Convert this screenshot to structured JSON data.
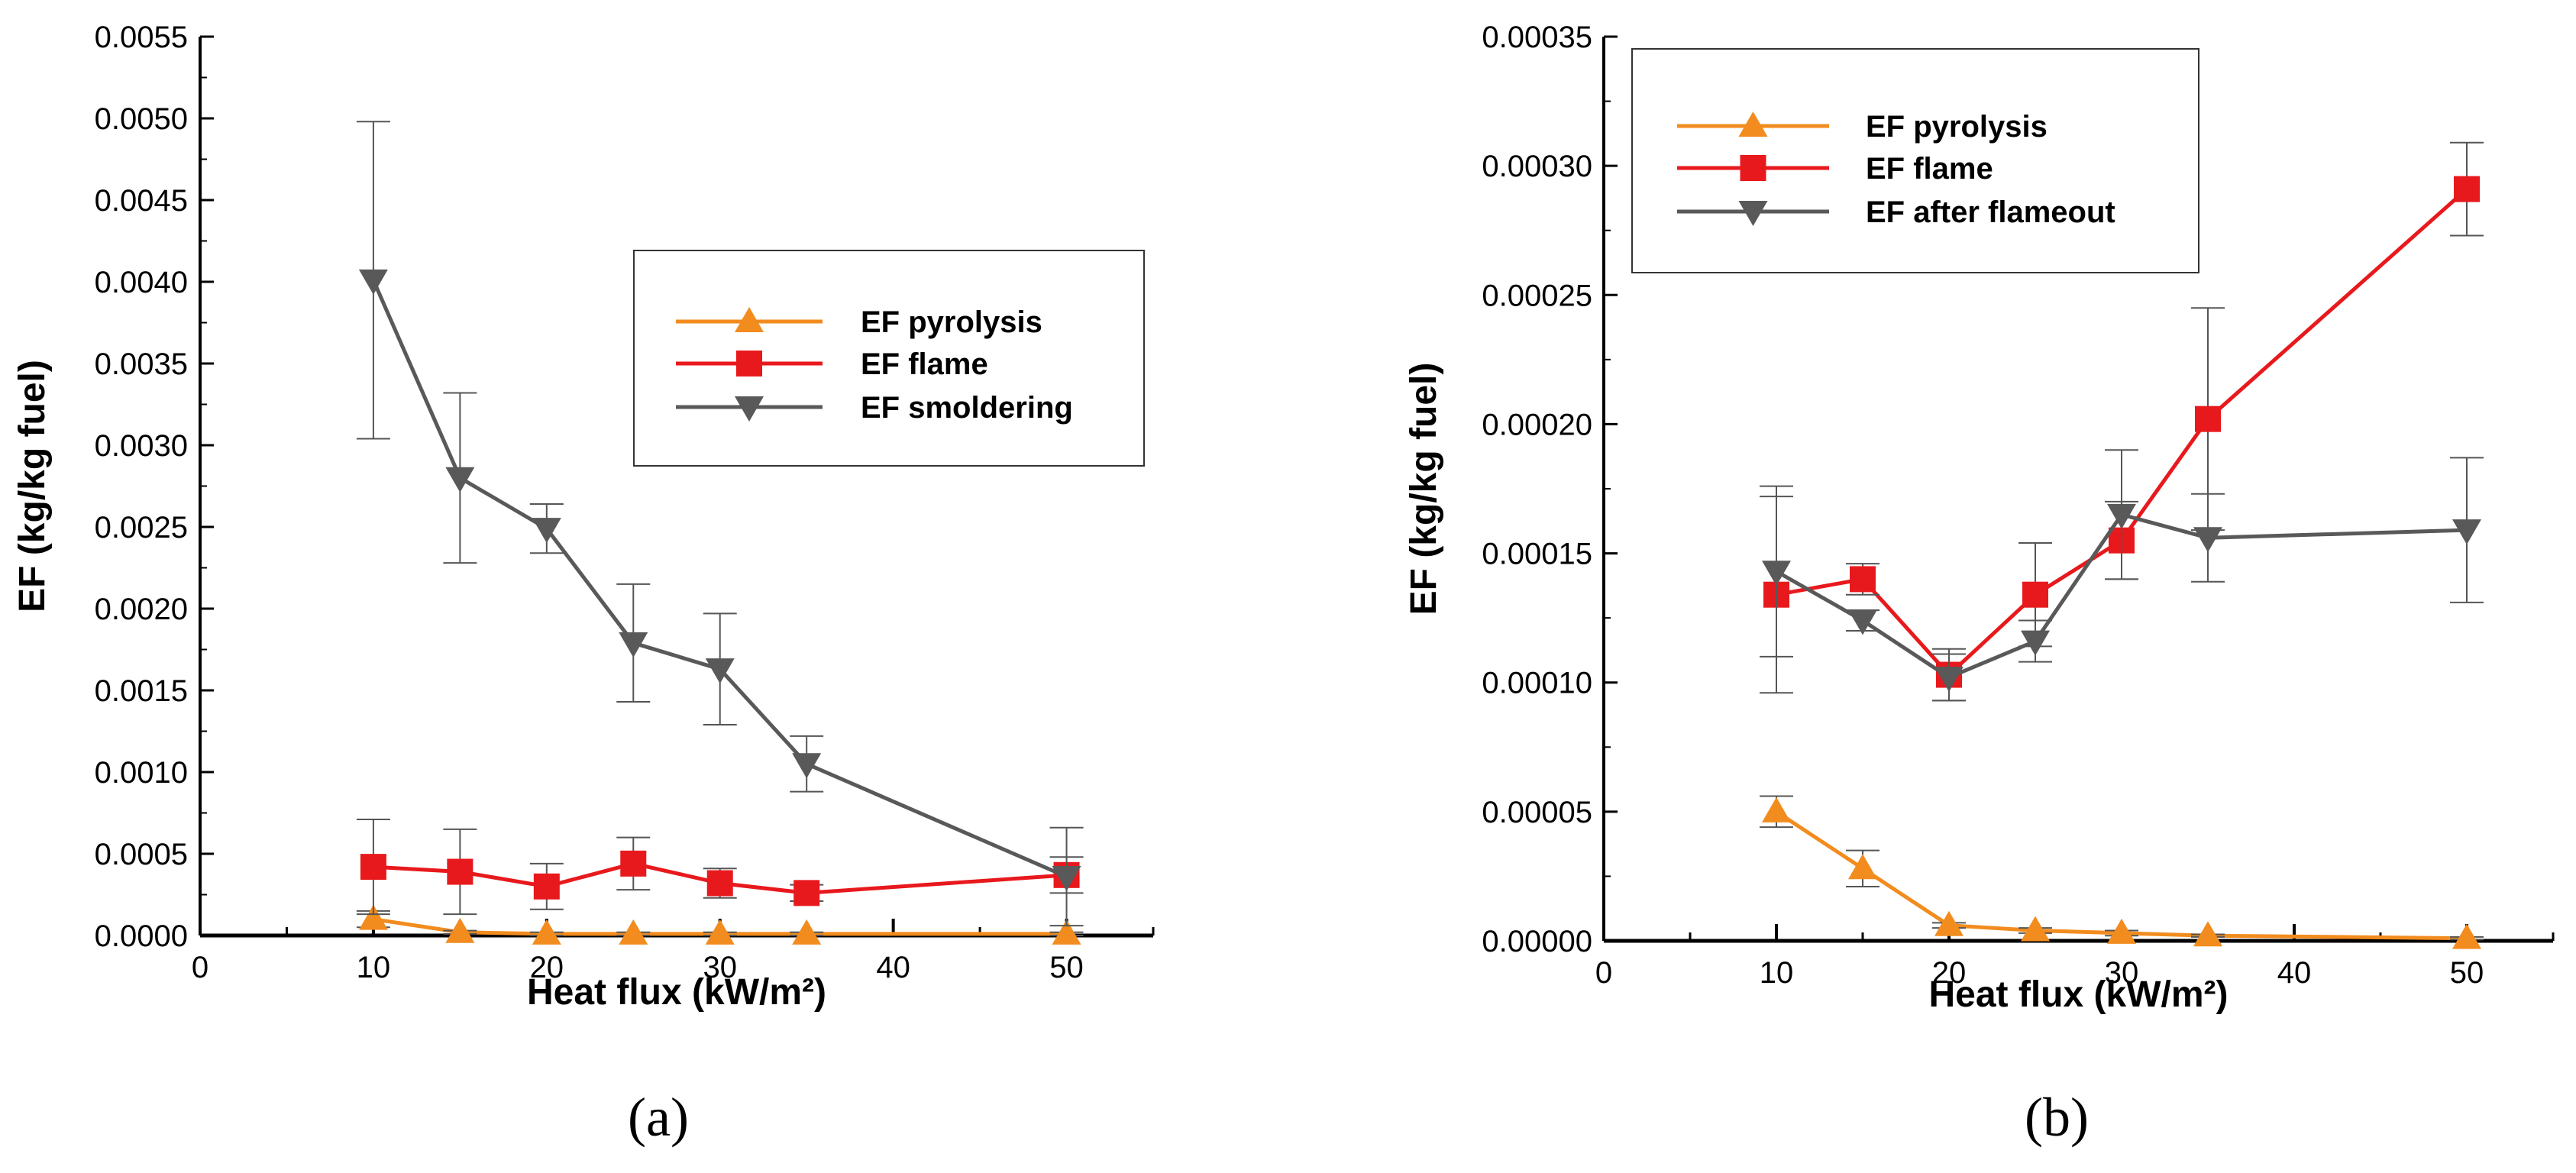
{
  "colors": {
    "pyrolysis": "#f28c1e",
    "flame": "#e8191d",
    "gray": "#595959",
    "axis": "#000000"
  },
  "chart_data": [
    {
      "type": "line",
      "panel_label": "(a)",
      "xlabel": "Heat flux (kW/m²)",
      "ylabel": "EF (kg/kg fuel)",
      "xlim": [
        0,
        55
      ],
      "ylim": [
        0,
        0.0055
      ],
      "x_ticks": [
        0,
        10,
        20,
        30,
        40,
        50
      ],
      "x_tick_labels": [
        "0",
        "10",
        "20",
        "30",
        "40",
        "50"
      ],
      "y_ticks": [
        0,
        0.0005,
        0.001,
        0.0015,
        0.002,
        0.0025,
        0.003,
        0.0035,
        0.004,
        0.0045,
        0.005,
        0.0055
      ],
      "y_tick_labels": [
        "0.0000",
        "0.0005",
        "0.0010",
        "0.0015",
        "0.0020",
        "0.0025",
        "0.0030",
        "0.0035",
        "0.0040",
        "0.0045",
        "0.0050",
        "0.0055"
      ],
      "legend_position": "upper-right",
      "series": [
        {
          "name": "EF pyrolysis",
          "color_key": "pyrolysis",
          "marker": "triangle-up",
          "x": [
            10,
            15,
            20,
            25,
            30,
            35,
            50
          ],
          "y": [
            0.0001,
            2e-05,
            1e-05,
            1e-05,
            1e-05,
            1e-05,
            1e-05
          ],
          "err": [
            5e-05,
            1e-05,
            1e-05,
            1e-05,
            1e-05,
            1e-05,
            1e-05
          ]
        },
        {
          "name": "EF flame",
          "color_key": "flame",
          "marker": "square",
          "x": [
            10,
            15,
            20,
            25,
            30,
            35,
            50
          ],
          "y": [
            0.00042,
            0.00039,
            0.0003,
            0.00044,
            0.00032,
            0.00026,
            0.00037
          ],
          "err": [
            0.00029,
            0.00026,
            0.00014,
            0.00016,
            9e-05,
            5e-05,
            0.00011
          ]
        },
        {
          "name": "EF smoldering",
          "color_key": "gray",
          "marker": "triangle-down",
          "x": [
            10,
            15,
            20,
            25,
            30,
            35,
            50
          ],
          "y": [
            0.00401,
            0.0028,
            0.00249,
            0.00179,
            0.00163,
            0.00105,
            0.00036
          ],
          "err": [
            0.00097,
            0.00052,
            0.00015,
            0.00036,
            0.00034,
            0.00017,
            0.0003
          ]
        }
      ]
    },
    {
      "type": "line",
      "panel_label": "(b)",
      "xlabel": "Heat flux (kW/m²)",
      "ylabel": "EF (kg/kg fuel)",
      "xlim": [
        0,
        55
      ],
      "ylim": [
        0,
        0.00035
      ],
      "x_ticks": [
        0,
        10,
        20,
        30,
        40,
        50
      ],
      "x_tick_labels": [
        "0",
        "10",
        "20",
        "30",
        "40",
        "50"
      ],
      "y_ticks": [
        0,
        5e-05,
        0.0001,
        0.00015,
        0.0002,
        0.00025,
        0.0003,
        0.00035
      ],
      "y_tick_labels": [
        "0.00000",
        "0.00005",
        "0.00010",
        "0.00015",
        "0.00020",
        "0.00025",
        "0.00030",
        "0.00035"
      ],
      "legend_position": "upper-left",
      "series": [
        {
          "name": "EF pyrolysis",
          "color_key": "pyrolysis",
          "marker": "triangle-up",
          "x": [
            10,
            15,
            20,
            25,
            30,
            35,
            50
          ],
          "y": [
            5e-05,
            2.8e-05,
            6e-06,
            4e-06,
            3e-06,
            2e-06,
            1e-06
          ],
          "err": [
            6e-06,
            7e-06,
            1e-06,
            1e-06,
            1e-06,
            5e-07,
            5e-07
          ]
        },
        {
          "name": "EF flame",
          "color_key": "flame",
          "marker": "square",
          "x": [
            10,
            15,
            20,
            25,
            30,
            35,
            50
          ],
          "y": [
            0.000134,
            0.00014,
            0.000103,
            0.000134,
            0.000155,
            0.000202,
            0.000291
          ],
          "err": [
            3.8e-05,
            6e-06,
            1e-05,
            2e-05,
            1.5e-05,
            4.3e-05,
            1.8e-05
          ]
        },
        {
          "name": "EF after flameout",
          "color_key": "gray",
          "marker": "triangle-down",
          "x": [
            10,
            15,
            20,
            25,
            30,
            35,
            50
          ],
          "y": [
            0.000143,
            0.000124,
            0.000102,
            0.000116,
            0.000165,
            0.000156,
            0.000159
          ],
          "err": [
            3.3e-05,
            4e-06,
            9e-06,
            8e-06,
            2.5e-05,
            1.7e-05,
            2.8e-05
          ]
        }
      ]
    }
  ]
}
